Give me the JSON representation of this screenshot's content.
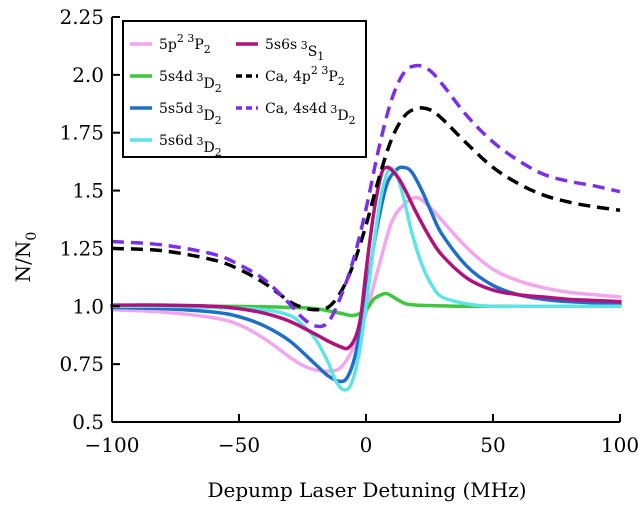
{
  "chart_data": {
    "type": "line",
    "xlabel": "Depump Laser Detuning (MHz)",
    "ylabel": "N/N",
    "ylabel_sub": "0",
    "xlim": [
      -100,
      100
    ],
    "ylim": [
      0.5,
      2.25
    ],
    "x_ticks": [
      -100,
      -50,
      0,
      50,
      100
    ],
    "x_tick_labels": [
      "−100",
      "−50",
      "0",
      "50",
      "100"
    ],
    "y_ticks": [
      0.5,
      0.75,
      1.0,
      1.25,
      1.5,
      1.75,
      2.0,
      2.25
    ],
    "y_tick_labels": [
      "0.5",
      "0.75",
      "1.0",
      "1.25",
      "1.5",
      "1.75",
      "2.0",
      "2.25"
    ],
    "grid": false,
    "legend_position": "top-left",
    "series": [
      {
        "id": "5p2_3P2",
        "label_base": "5p",
        "label_sup1": "2",
        "label_sup2": "3",
        "label_term": "P",
        "label_sub": "2",
        "color": "#f2a6ee",
        "dash": "solid",
        "x": [
          -100,
          -80,
          -60,
          -50,
          -40,
          -30,
          -25,
          -20,
          -15,
          -10,
          -5,
          0,
          5,
          10,
          15,
          20,
          25,
          30,
          40,
          50,
          60,
          70,
          80,
          90,
          100
        ],
        "y": [
          0.985,
          0.975,
          0.95,
          0.92,
          0.86,
          0.78,
          0.745,
          0.725,
          0.72,
          0.735,
          0.82,
          0.97,
          1.17,
          1.36,
          1.44,
          1.47,
          1.43,
          1.37,
          1.25,
          1.16,
          1.11,
          1.08,
          1.06,
          1.05,
          1.04
        ]
      },
      {
        "id": "5s4d_3D2",
        "label_base": "5s4d",
        "label_sup1": "",
        "label_sup2": "3",
        "label_term": "D",
        "label_sub": "2",
        "color": "#3fc83f",
        "dash": "solid",
        "x": [
          -100,
          -80,
          -60,
          -40,
          -30,
          -20,
          -10,
          -5,
          0,
          3,
          6,
          8,
          10,
          13,
          16,
          20,
          30,
          40,
          60,
          80,
          100
        ],
        "y": [
          1.0,
          1.0,
          1.0,
          0.998,
          0.995,
          0.99,
          0.97,
          0.96,
          0.985,
          1.03,
          1.05,
          1.055,
          1.045,
          1.025,
          1.01,
          1.005,
          1.002,
          1.0,
          1.0,
          1.0,
          1.0
        ]
      },
      {
        "id": "5s5d_3D2",
        "label_base": "5s5d",
        "label_sup1": "",
        "label_sup2": "3",
        "label_term": "D",
        "label_sub": "2",
        "color": "#1f6ec8",
        "dash": "solid",
        "x": [
          -100,
          -80,
          -60,
          -50,
          -40,
          -30,
          -20,
          -15,
          -10,
          -7,
          -4,
          0,
          4,
          8,
          12,
          15,
          18,
          22,
          26,
          30,
          40,
          50,
          60,
          70,
          80,
          100
        ],
        "y": [
          0.995,
          0.99,
          0.975,
          0.955,
          0.915,
          0.85,
          0.75,
          0.7,
          0.675,
          0.7,
          0.8,
          1.05,
          1.32,
          1.52,
          1.59,
          1.6,
          1.58,
          1.5,
          1.4,
          1.31,
          1.17,
          1.09,
          1.05,
          1.03,
          1.02,
          1.01
        ]
      },
      {
        "id": "5s6d_3D2",
        "label_base": "5s6d",
        "label_sup1": "",
        "label_sup2": "3",
        "label_term": "D",
        "label_sub": "2",
        "color": "#5fe4e6",
        "dash": "solid",
        "x": [
          -100,
          -80,
          -60,
          -40,
          -30,
          -25,
          -20,
          -15,
          -12,
          -9,
          -6,
          -3,
          0,
          3,
          6,
          9,
          12,
          15,
          18,
          22,
          26,
          30,
          40,
          50,
          60,
          80,
          100
        ],
        "y": [
          1.0,
          1.0,
          0.995,
          0.985,
          0.96,
          0.92,
          0.86,
          0.76,
          0.68,
          0.64,
          0.66,
          0.78,
          1.0,
          1.26,
          1.48,
          1.59,
          1.57,
          1.46,
          1.32,
          1.18,
          1.09,
          1.04,
          1.01,
          1.0,
          1.0,
          1.0,
          1.0
        ]
      },
      {
        "id": "5s6s_3S1",
        "label_base": "5s6s",
        "label_sup1": "",
        "label_sup2": "3",
        "label_term": "S",
        "label_sub": "1",
        "color": "#b0127a",
        "dash": "solid",
        "x": [
          -100,
          -80,
          -60,
          -50,
          -40,
          -30,
          -20,
          -15,
          -10,
          -7,
          -4,
          -2,
          0,
          3,
          6,
          8,
          10,
          13,
          16,
          20,
          25,
          30,
          40,
          50,
          60,
          70,
          80,
          90,
          100
        ],
        "y": [
          1.005,
          1.005,
          1.0,
          0.99,
          0.97,
          0.935,
          0.88,
          0.85,
          0.825,
          0.82,
          0.87,
          0.96,
          1.15,
          1.4,
          1.57,
          1.6,
          1.59,
          1.55,
          1.49,
          1.4,
          1.3,
          1.22,
          1.12,
          1.07,
          1.05,
          1.04,
          1.03,
          1.025,
          1.02
        ]
      },
      {
        "id": "Ca_4p2_3P2",
        "label_base": "Ca, 4p",
        "label_sup1": "2",
        "label_sup2": "3",
        "label_term": "P",
        "label_sub": "2",
        "color": "#000000",
        "dash": "dashed",
        "x": [
          -100,
          -80,
          -60,
          -50,
          -40,
          -30,
          -25,
          -20,
          -15,
          -10,
          -5,
          0,
          5,
          10,
          15,
          20,
          25,
          30,
          40,
          50,
          60,
          70,
          80,
          90,
          100
        ],
        "y": [
          1.25,
          1.24,
          1.2,
          1.16,
          1.1,
          1.02,
          0.995,
          0.985,
          0.995,
          1.06,
          1.18,
          1.35,
          1.55,
          1.72,
          1.82,
          1.855,
          1.85,
          1.81,
          1.7,
          1.6,
          1.53,
          1.48,
          1.45,
          1.43,
          1.415
        ]
      },
      {
        "id": "Ca_4s4d_3D2",
        "label_base": "Ca, 4s4d",
        "label_sup1": "",
        "label_sup2": "3",
        "label_term": "D",
        "label_sub": "2",
        "color": "#7b2fe6",
        "dash": "dashed",
        "x": [
          -100,
          -80,
          -60,
          -50,
          -40,
          -30,
          -25,
          -20,
          -15,
          -10,
          -5,
          0,
          5,
          10,
          15,
          20,
          25,
          30,
          40,
          50,
          60,
          70,
          80,
          90,
          100
        ],
        "y": [
          1.28,
          1.265,
          1.225,
          1.18,
          1.115,
          1.01,
          0.95,
          0.915,
          0.93,
          1.04,
          1.2,
          1.42,
          1.68,
          1.89,
          2.01,
          2.04,
          2.02,
          1.96,
          1.82,
          1.71,
          1.63,
          1.57,
          1.54,
          1.52,
          1.495
        ]
      }
    ]
  }
}
